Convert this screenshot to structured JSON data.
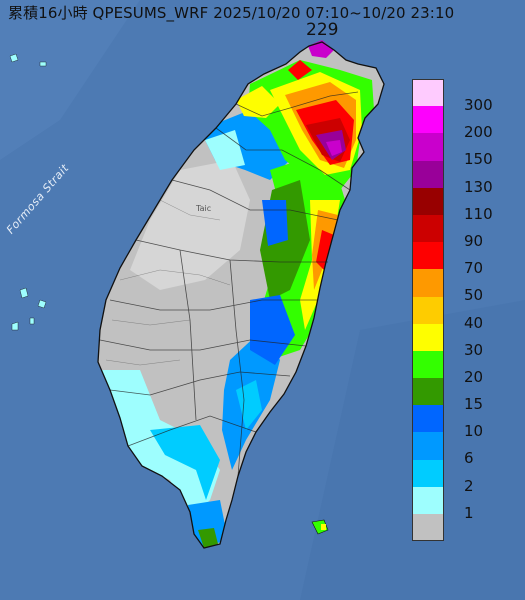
{
  "title": "累積16小時 QPESUMS_WRF 2025/10/20 07:10~10/20 23:10",
  "max_value": "229",
  "strait_label": "Formosa Strait",
  "city_label": "Taic",
  "legend": {
    "items": [
      {
        "label": "300",
        "color": "#fecbfe"
      },
      {
        "label": "200",
        "color": "#fd01fd"
      },
      {
        "label": "150",
        "color": "#c900cc"
      },
      {
        "label": "130",
        "color": "#990099"
      },
      {
        "label": "110",
        "color": "#980000"
      },
      {
        "label": "90",
        "color": "#cc0000"
      },
      {
        "label": "70",
        "color": "#fe0000"
      },
      {
        "label": "50",
        "color": "#fe9900"
      },
      {
        "label": "40",
        "color": "#fecc00"
      },
      {
        "label": "30",
        "color": "#fefe00"
      },
      {
        "label": "20",
        "color": "#33ff00"
      },
      {
        "label": "15",
        "color": "#339900"
      },
      {
        "label": "10",
        "color": "#0066ff"
      },
      {
        "label": "6",
        "color": "#0099ff"
      },
      {
        "label": "2",
        "color": "#00ccff"
      },
      {
        "label": "1",
        "color": "#9efefe"
      },
      {
        "label": "",
        "color": "#c1c1c1"
      }
    ]
  },
  "colors": {
    "sea": "#4d7ab3",
    "land": "#c1c1c1",
    "outline": "#111111"
  }
}
